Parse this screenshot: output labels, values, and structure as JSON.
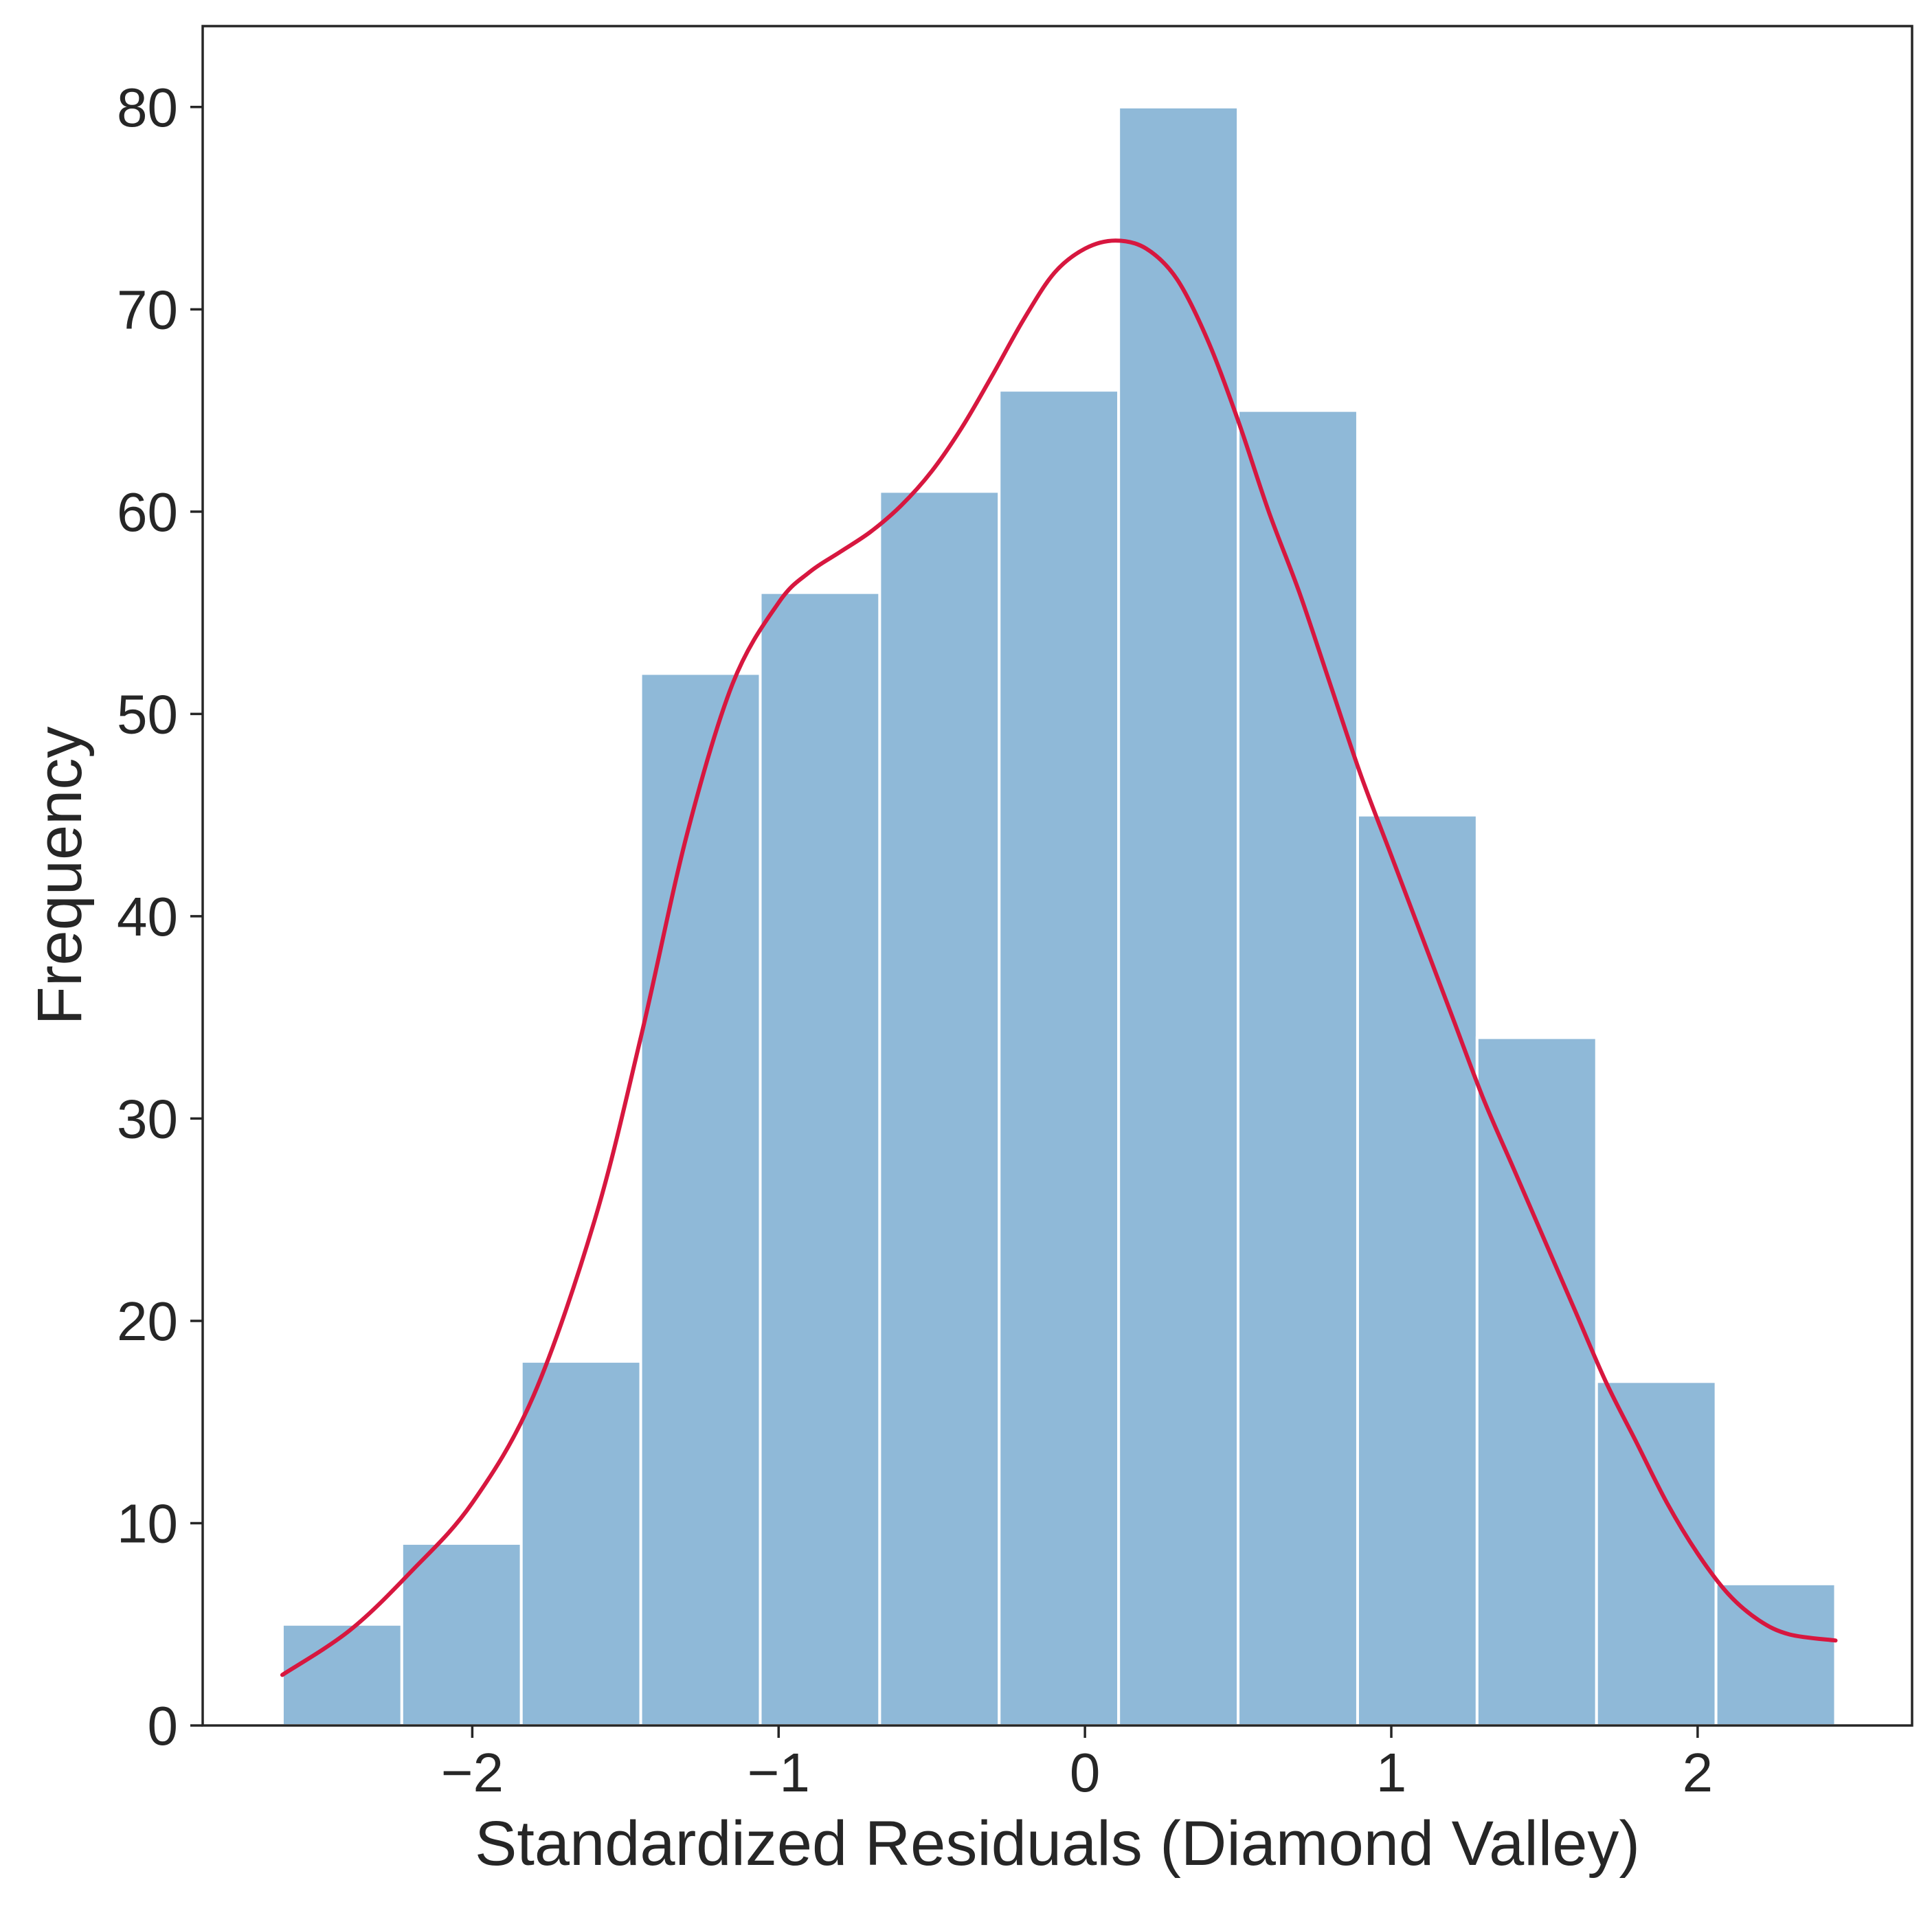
{
  "chart_data": {
    "type": "bar",
    "subtype": "histogram-with-kde",
    "title": "",
    "xlabel": "Standardized Residuals (Diamond Valley)",
    "ylabel": "Frequency",
    "xlim": [
      -2.88,
      2.7
    ],
    "ylim": [
      0,
      84
    ],
    "xticks": [
      {
        "value": -2,
        "label": "−2"
      },
      {
        "value": -1,
        "label": "−1"
      },
      {
        "value": 0,
        "label": "0"
      },
      {
        "value": 1,
        "label": "1"
      },
      {
        "value": 2,
        "label": "2"
      }
    ],
    "yticks": [
      {
        "value": 0,
        "label": "0"
      },
      {
        "value": 10,
        "label": "10"
      },
      {
        "value": 20,
        "label": "20"
      },
      {
        "value": 30,
        "label": "30"
      },
      {
        "value": 40,
        "label": "40"
      },
      {
        "value": 50,
        "label": "50"
      },
      {
        "value": 60,
        "label": "60"
      },
      {
        "value": 70,
        "label": "70"
      },
      {
        "value": 80,
        "label": "80"
      }
    ],
    "bins": {
      "edges": [
        -2.62,
        -2.23,
        -1.84,
        -1.45,
        -1.06,
        -0.67,
        -0.28,
        0.11,
        0.5,
        0.89,
        1.28,
        1.67,
        2.06,
        2.45
      ],
      "counts": [
        5,
        9,
        18,
        52,
        56,
        61,
        66,
        80,
        65,
        45,
        34,
        17,
        7
      ]
    },
    "kde": {
      "x": [
        -2.62,
        -2.4,
        -2.2,
        -2.0,
        -1.8,
        -1.6,
        -1.45,
        -1.3,
        -1.15,
        -1.0,
        -0.9,
        -0.8,
        -0.7,
        -0.6,
        -0.5,
        -0.4,
        -0.3,
        -0.2,
        -0.1,
        0.0,
        0.1,
        0.2,
        0.3,
        0.4,
        0.5,
        0.6,
        0.7,
        0.8,
        0.9,
        1.0,
        1.1,
        1.2,
        1.3,
        1.4,
        1.5,
        1.6,
        1.7,
        1.8,
        1.9,
        2.0,
        2.1,
        2.2,
        2.3,
        2.45
      ],
      "y": [
        2.5,
        4.7,
        7.6,
        11.0,
        16.3,
        25.0,
        34.0,
        44.0,
        51.5,
        55.5,
        57.0,
        58.0,
        59.0,
        60.3,
        62.0,
        64.2,
        66.8,
        69.5,
        71.8,
        73.0,
        73.4,
        73.0,
        71.5,
        68.5,
        64.5,
        60.0,
        56.0,
        51.5,
        47.0,
        43.0,
        39.0,
        35.0,
        31.0,
        27.5,
        24.0,
        20.5,
        17.0,
        14.0,
        11.0,
        8.5,
        6.5,
        5.2,
        4.5,
        4.2
      ]
    },
    "grid": false,
    "legend": "none",
    "colors": {
      "bar_fill": "#8fb9d8",
      "bar_edge": "#ffffff",
      "kde_line": "#d7173f",
      "axis": "#262626",
      "text": "#262626"
    }
  }
}
